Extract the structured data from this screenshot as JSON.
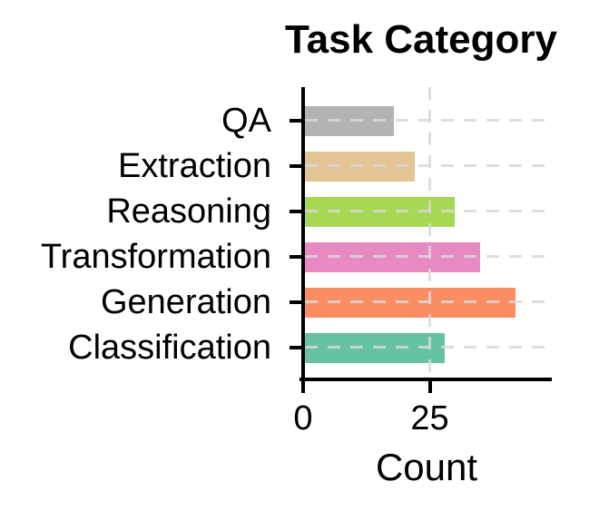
{
  "chart_data": {
    "type": "bar",
    "orientation": "horizontal",
    "title": "Task Category",
    "xlabel": "Count",
    "ylabel": "",
    "categories": [
      "QA",
      "Extraction",
      "Reasoning",
      "Transformation",
      "Generation",
      "Classification"
    ],
    "values": [
      18,
      22,
      30,
      35,
      42,
      28
    ],
    "bar_colors": [
      "#b3b3b3",
      "#e5c494",
      "#a6d854",
      "#e78ac3",
      "#fc8d62",
      "#66c2a5"
    ],
    "xticks": [
      0,
      25
    ],
    "xlim": [
      0,
      49
    ],
    "grid": {
      "style": "dashed",
      "color": "#d8d8d8",
      "horizontal": true,
      "vertical": true
    },
    "axis_color": "#000000",
    "text_color": "#000000",
    "background_color": "#ffffff",
    "legend": "none"
  }
}
